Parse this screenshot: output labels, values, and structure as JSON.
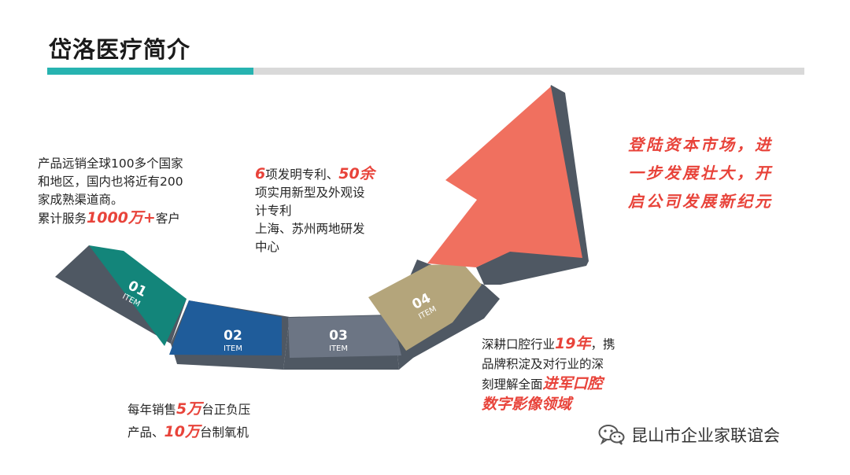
{
  "header": {
    "title": "岱洛医疗简介"
  },
  "block1": {
    "line1": "产品远销全球100多个国家",
    "line2": "和地区，国内也将近有200",
    "line3": "家成熟渠道商。",
    "line4_pre": "累计服务",
    "line4_hl": "1000万+",
    "line4_post": "客户"
  },
  "block2": {
    "line1_hl1": "6",
    "line1_mid": "项发明专利、",
    "line1_hl2": "50余",
    "line2": "项实用新型及外观设",
    "line3": "计专利",
    "line4": "上海、苏州两地研发",
    "line5": "中心"
  },
  "block3": {
    "line1_pre": "每年销售",
    "line1_hl": "5万",
    "line1_post": "台正负压",
    "line2_pre": "产品、",
    "line2_hl": "10万",
    "line2_post": "台制氧机"
  },
  "block4": {
    "line1_pre": "深耕口腔行业",
    "line1_hl": "19年",
    "line1_post": "，携",
    "line2": "品牌积淀及对行业的深",
    "line3_pre": "刻理解全面",
    "line3_hl": "进军口腔",
    "line4_hl": "数字影像领域"
  },
  "slogan": {
    "line1": "登陆资本市场，进",
    "line2": "一步发展壮大，开",
    "line3": "启公司发展新纪元"
  },
  "steps": [
    {
      "num": "01",
      "label": "ITEM"
    },
    {
      "num": "02",
      "label": "ITEM"
    },
    {
      "num": "03",
      "label": "ITEM"
    },
    {
      "num": "04",
      "label": "ITEM"
    }
  ],
  "colors": {
    "step1": "#13857a",
    "step2": "#1f5c9a",
    "step3": "#6c7584",
    "step4": "#b4a57b",
    "arrow": "#f0705f",
    "shadow": "#4f5863",
    "accent_text": "#e8433a",
    "rule_teal": "#27b3b0",
    "rule_grey": "#d9d9d9"
  },
  "watermark": {
    "icon": "wechat-icon",
    "text": "昆山市企业家联谊会"
  }
}
